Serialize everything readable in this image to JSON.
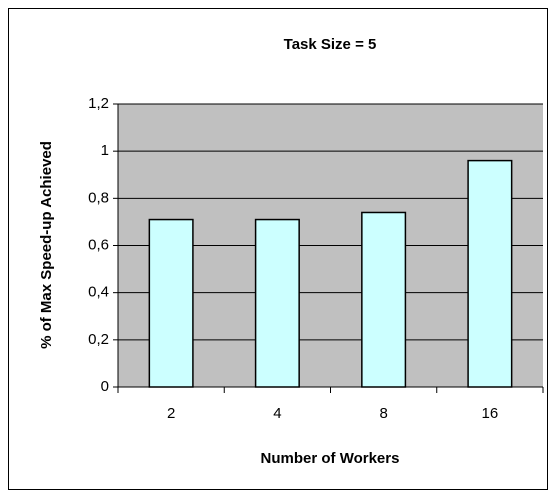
{
  "chart_data": {
    "type": "bar",
    "title": "Task Size = 5",
    "x_label": "Number of Workers",
    "y_label": "% of Max Speed-up Achieved",
    "categories": [
      "2",
      "4",
      "8",
      "16"
    ],
    "values": [
      0.71,
      0.71,
      0.74,
      0.96
    ],
    "color": "#ccffff",
    "ylim": [
      0,
      1.2
    ],
    "yticks": [
      0,
      {
        "value": 0.2,
        "label": "0,2"
      },
      {
        "value": 0.4,
        "label": "0,4"
      },
      {
        "value": 0.6,
        "label": "0,6"
      },
      {
        "value": 0.8,
        "label": "0,8"
      },
      1,
      {
        "value": 1.2,
        "label": "1,2"
      }
    ],
    "grid": true
  }
}
